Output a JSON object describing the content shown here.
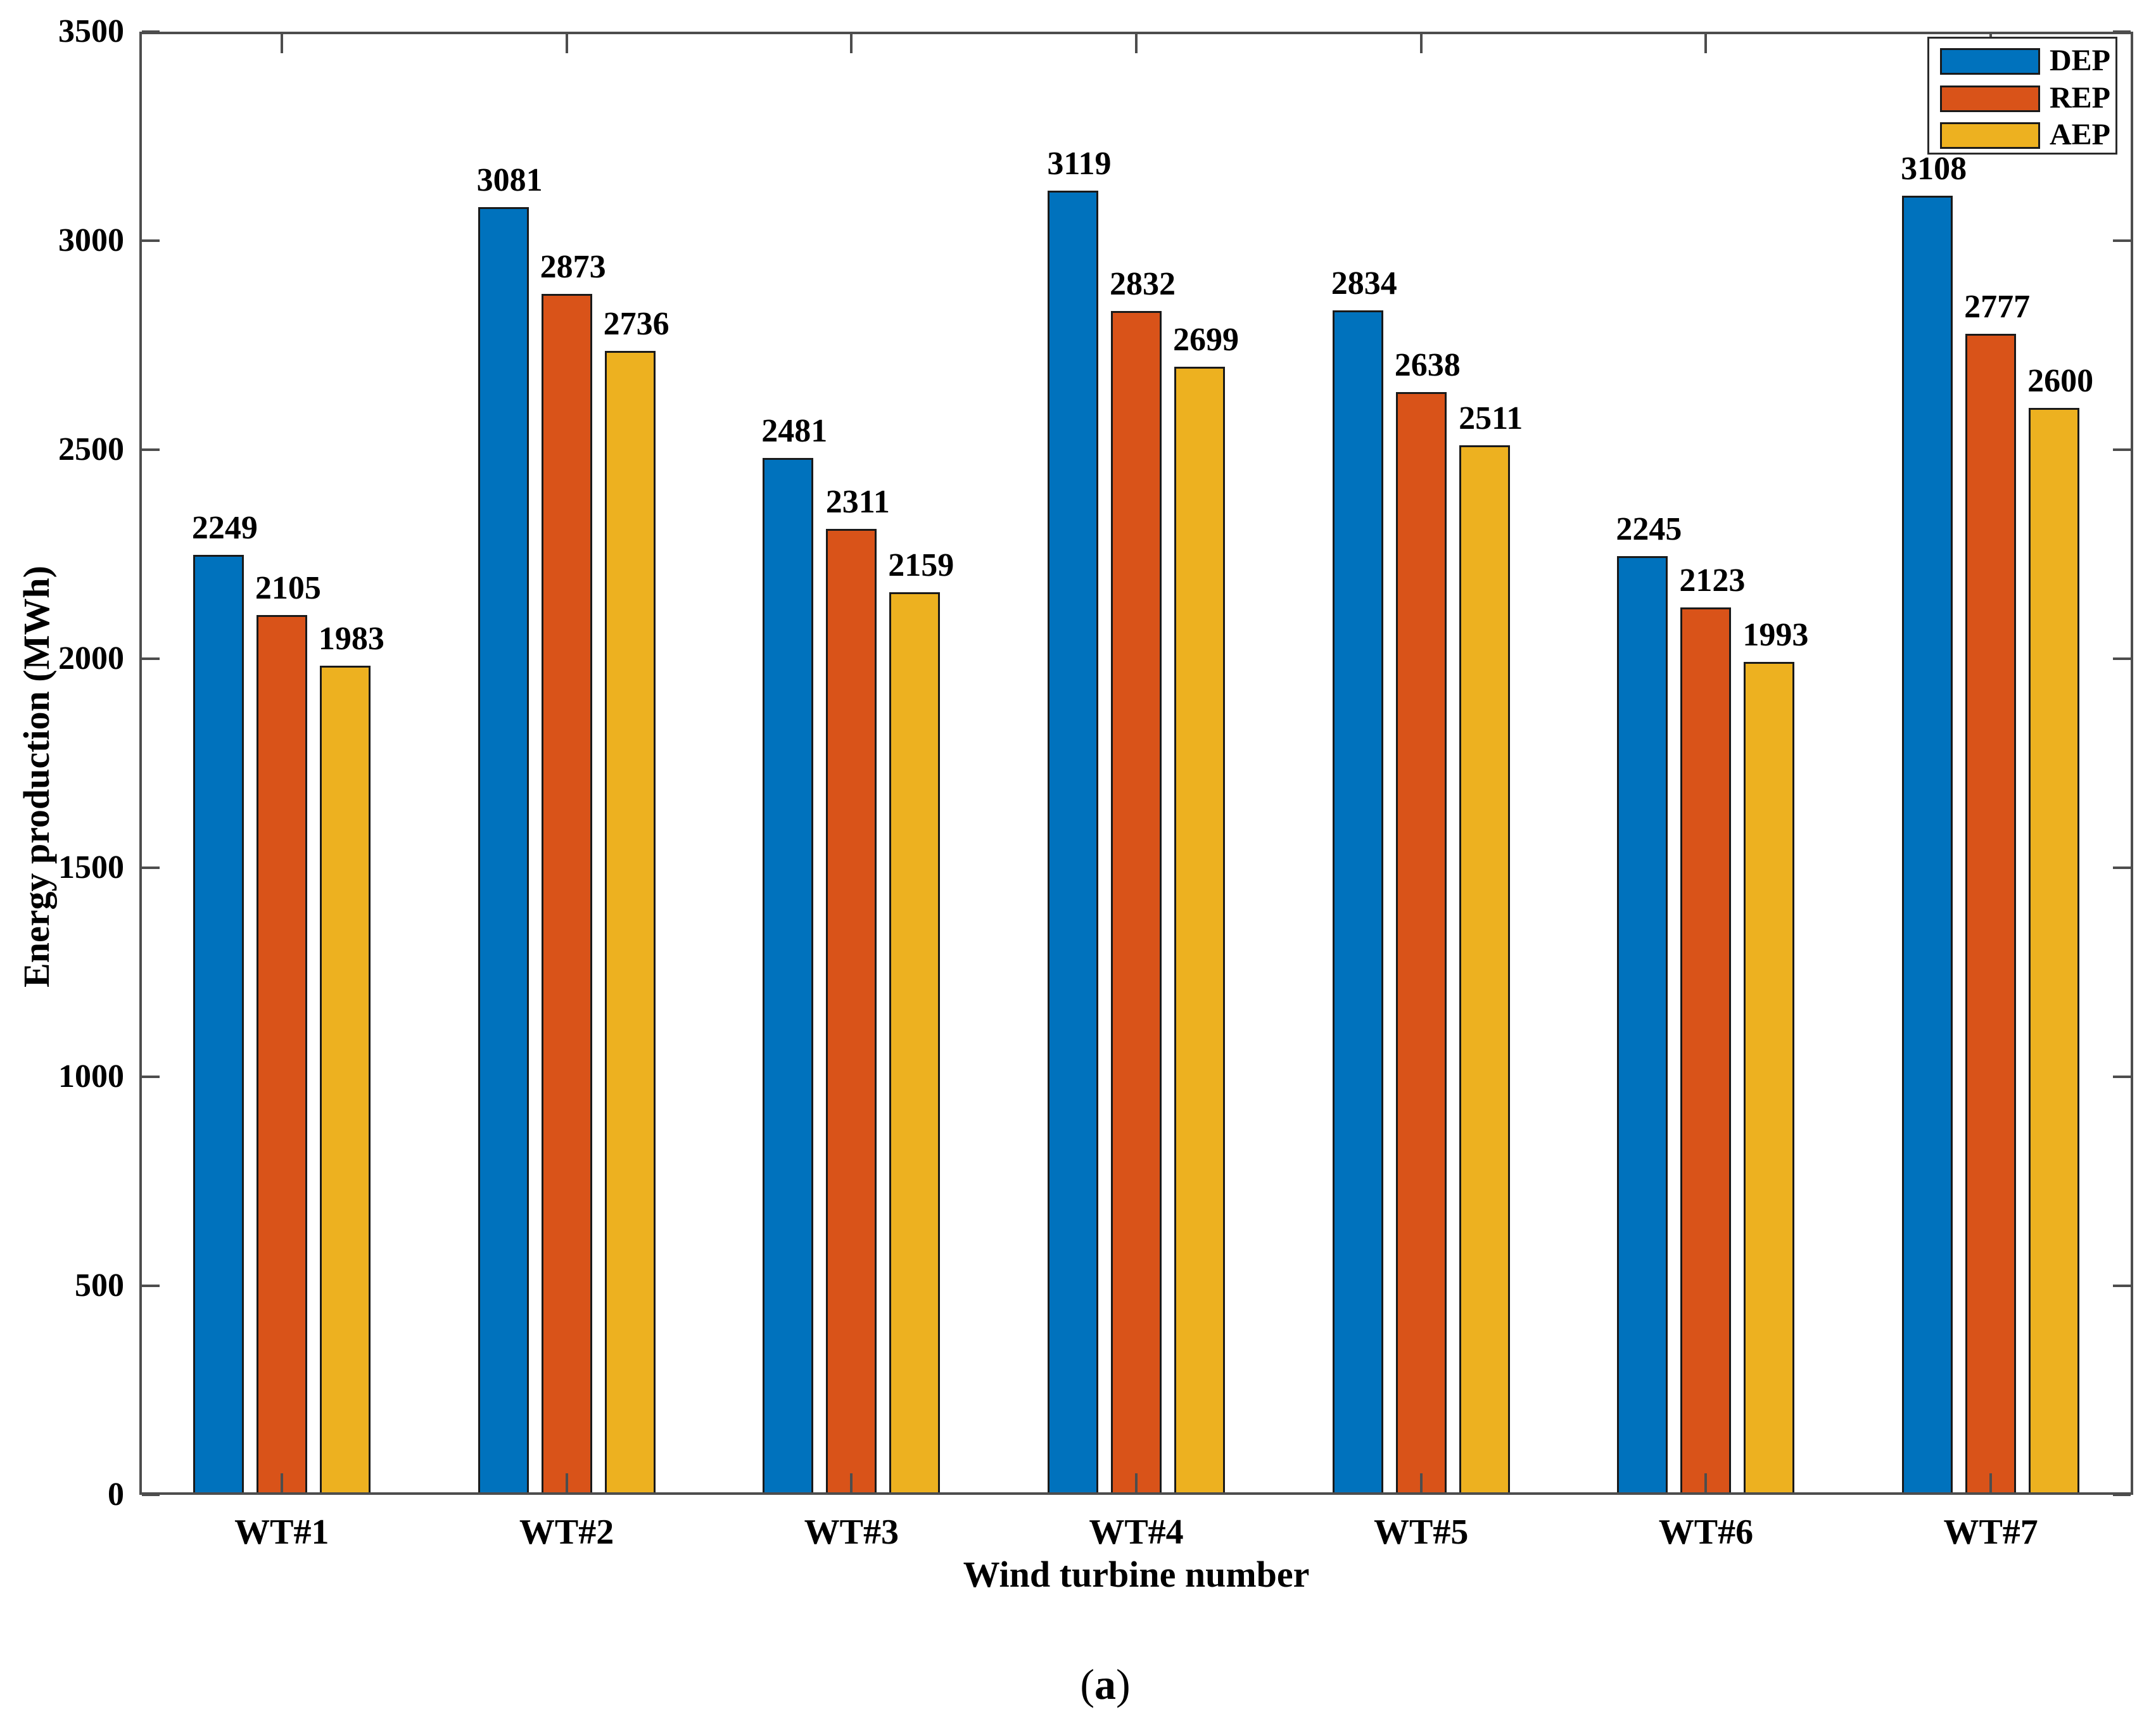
{
  "chart_data": {
    "type": "bar",
    "title": "",
    "xlabel": "Wind turbine number",
    "ylabel": "Energy production (MWh)",
    "categories": [
      "WT#1",
      "WT#2",
      "WT#3",
      "WT#4",
      "WT#5",
      "WT#6",
      "WT#7"
    ],
    "series": [
      {
        "name": "DEP",
        "color": "#0072BD",
        "values": [
          2249,
          3081,
          2481,
          3119,
          2834,
          2245,
          3108
        ]
      },
      {
        "name": "REP",
        "color": "#D95319",
        "values": [
          2105,
          2873,
          2311,
          2832,
          2638,
          2123,
          2777
        ]
      },
      {
        "name": "AEP",
        "color": "#EDB120",
        "values": [
          1983,
          2736,
          2159,
          2699,
          2511,
          1993,
          2600
        ]
      }
    ],
    "ylim": [
      0,
      3500
    ],
    "yticks": [
      0,
      500,
      1000,
      1500,
      2000,
      2500,
      3000,
      3500
    ],
    "bar_value_labels": true,
    "legend_position": "top-right",
    "grid": false
  },
  "figure": {
    "caption": "(a)",
    "caption_open": "(",
    "caption_letter": "a",
    "caption_close": ")"
  },
  "colors": {
    "axis": "#4d4d4d",
    "bar_edge": "#1a1a1a",
    "background": "#ffffff",
    "text": "#000000"
  }
}
